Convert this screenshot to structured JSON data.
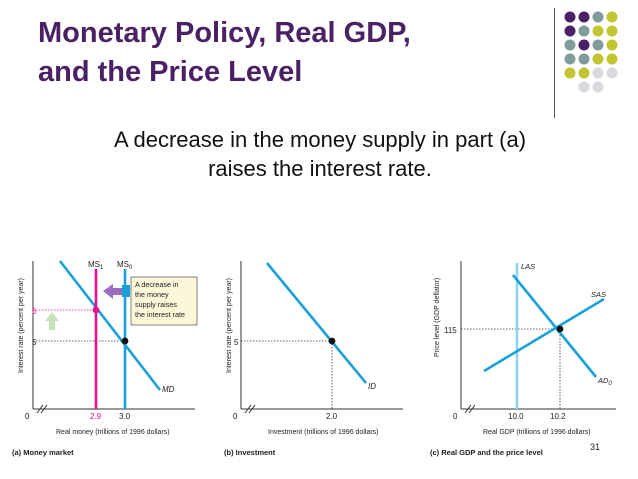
{
  "slide": {
    "title_line1": "Monetary Policy, Real GDP,",
    "title_line2": "and the Price Level",
    "subtitle_line1": "A decrease in the money supply in part (a)",
    "subtitle_line2": "raises the interest rate.",
    "page_number": "31"
  },
  "colors": {
    "title": "#4b2166",
    "line_blue": "#1aa0d8",
    "line_magenta": "#e0148c",
    "purple_dot": "#4b2166",
    "teal_dot": "#7f9c9a",
    "yellow_dot": "#c2c430",
    "gray_dot": "#d9d9df"
  },
  "panel_a": {
    "ylabel": "Interest rate (percent per year)",
    "xlabel": "Real money (trillions of 1996 dollars)",
    "caption": "(a) Money market",
    "origin": "0",
    "ms1_label": "MS",
    "ms1_sub": "1",
    "ms0_label": "MS",
    "ms0_sub": "0",
    "md_label": "MD",
    "y_tick_6": "6",
    "y_tick_5": "5",
    "x_tick_29": "2.9",
    "x_tick_30": "3.0",
    "note_line1": "A decrease in",
    "note_line2": "the money",
    "note_line3": "supply raises",
    "note_line4": "the interest rate"
  },
  "panel_b": {
    "ylabel": "Interest rate (percent per year)",
    "xlabel": "Investment (trillions of 1996 dollars)",
    "caption": "(b) Investment",
    "origin": "0",
    "id_label": "ID",
    "y_tick_5": "5",
    "x_tick_20": "2.0"
  },
  "panel_c": {
    "ylabel": "Price level (GDP deflator)",
    "xlabel": "Real GDP (trillions of 1996 dollars)",
    "caption": "(c) Real GDP and the price level",
    "origin": "0",
    "las_label": "LAS",
    "sas_label": "SAS",
    "ad_label": "AD",
    "ad_sub": "0",
    "y_tick_115": "115",
    "x_tick_100": "10.0",
    "x_tick_102": "10.2"
  }
}
